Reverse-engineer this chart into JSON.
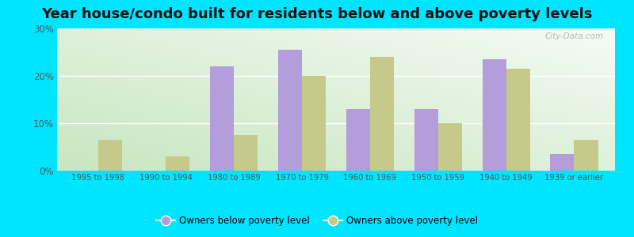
{
  "title": "Year house/condo built for residents below and above poverty levels",
  "categories": [
    "1995 to 1998",
    "1990 to 1994",
    "1980 to 1989",
    "1970 to 1979",
    "1960 to 1969",
    "1950 to 1959",
    "1940 to 1949",
    "1939 or earlier"
  ],
  "below_poverty": [
    0,
    0,
    22.0,
    25.5,
    13.0,
    13.0,
    23.5,
    3.5
  ],
  "above_poverty": [
    6.5,
    3.0,
    7.5,
    20.0,
    24.0,
    10.0,
    21.5,
    6.5
  ],
  "below_color": "#b39ddb",
  "above_color": "#c5c98a",
  "outer_bg": "#00e5ff",
  "ylim": [
    0,
    30
  ],
  "yticks": [
    0,
    10,
    20,
    30
  ],
  "title_fontsize": 13,
  "legend_below_label": "Owners below poverty level",
  "legend_above_label": "Owners above poverty level",
  "bar_width": 0.35,
  "grid_color": "#ccddcc",
  "watermark": "City-Data.com"
}
